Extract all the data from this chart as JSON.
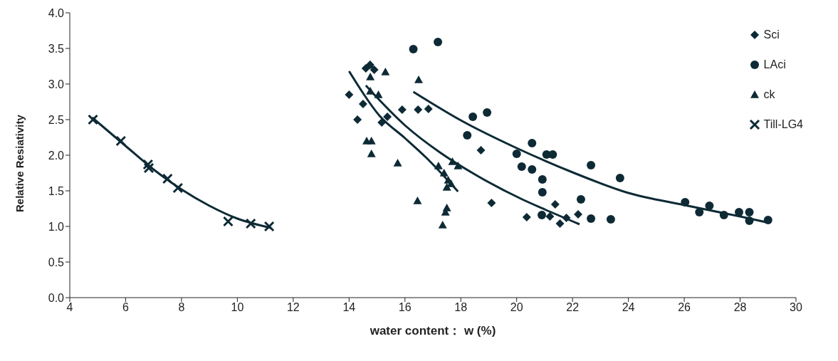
{
  "chart_data": {
    "type": "scatter",
    "xlabel": "water content： w (%)",
    "ylabel": "Relative Resiativity",
    "xlim": [
      4,
      30
    ],
    "xticks": [
      4,
      6,
      8,
      10,
      12,
      14,
      16,
      18,
      20,
      22,
      24,
      26,
      28,
      30
    ],
    "ylim": [
      0,
      4
    ],
    "yticks": [
      {
        "value": 0,
        "label": "0.0"
      },
      {
        "value": 0.5,
        "label": "0.5"
      },
      {
        "value": 1,
        "label": "1.0"
      },
      {
        "value": 1.5,
        "label": "1.5"
      },
      {
        "value": 2,
        "label": "2.0"
      },
      {
        "value": 2.5,
        "label": "2.5"
      },
      {
        "value": 3,
        "label": "3.0"
      },
      {
        "value": 3.5,
        "label": "3.5"
      },
      {
        "value": 4,
        "label": "4.0"
      }
    ],
    "grid": false,
    "legend": "top right",
    "series": [
      {
        "name": "Sci",
        "marker": "diamond",
        "color": "#0d2a35",
        "x": [
          14.0,
          14.3,
          14.5,
          14.6,
          14.75,
          14.9,
          15.17,
          15.37,
          15.9,
          16.47,
          16.84,
          18.72,
          19.1,
          20.36,
          21.38,
          22.2,
          21.19,
          21.55,
          21.78
        ],
        "values": [
          2.85,
          2.5,
          2.72,
          3.22,
          3.27,
          3.2,
          2.46,
          2.54,
          2.64,
          2.64,
          2.65,
          2.07,
          1.33,
          1.13,
          1.31,
          1.17,
          1.14,
          1.04,
          1.12
        ]
      },
      {
        "name": "LAci",
        "marker": "circle",
        "color": "#0d2a35",
        "x": [
          16.3,
          17.18,
          18.43,
          18.23,
          18.94,
          20.55,
          20.0,
          21.07,
          21.29,
          20.18,
          20.55,
          20.92,
          20.92,
          22.66,
          23.7,
          22.3,
          22.66,
          23.37,
          20.9,
          26.03,
          26.54,
          26.9,
          27.42,
          27.96,
          28.33,
          28.33,
          29.0
        ],
        "values": [
          3.49,
          3.59,
          2.54,
          2.28,
          2.6,
          2.17,
          2.02,
          2.01,
          2.01,
          1.84,
          1.8,
          1.66,
          1.48,
          1.86,
          1.68,
          1.38,
          1.11,
          1.1,
          1.16,
          1.34,
          1.2,
          1.29,
          1.16,
          1.2,
          1.2,
          1.08,
          1.09
        ]
      },
      {
        "name": "ck",
        "marker": "triangle",
        "color": "#0d2a35",
        "x": [
          15.3,
          16.49,
          14.76,
          14.76,
          14.76,
          15.05,
          14.63,
          14.8,
          14.8,
          15.74,
          17.2,
          17.4,
          17.55,
          17.7,
          17.9,
          17.5,
          17.65,
          16.45,
          17.5,
          17.45,
          17.35
        ],
        "values": [
          3.17,
          3.06,
          3.27,
          3.1,
          2.9,
          2.85,
          2.2,
          2.2,
          2.02,
          1.89,
          1.85,
          1.75,
          1.65,
          1.91,
          1.85,
          1.55,
          1.6,
          1.36,
          1.26,
          1.2,
          1.02
        ]
      },
      {
        "name": "Till-LG4",
        "marker": "cross",
        "color": "#0d2a35",
        "x": [
          4.83,
          5.83,
          6.8,
          6.83,
          7.5,
          7.87,
          9.67,
          10.48,
          11.14
        ],
        "values": [
          2.5,
          2.2,
          1.87,
          1.82,
          1.67,
          1.54,
          1.07,
          1.04,
          1.0
        ]
      },
      {
        "type": "line",
        "marker": "none",
        "color": "#0d2a35",
        "x": [
          14.6,
          15.05,
          16,
          17.25,
          18.55,
          20.2,
          21,
          22.25
        ],
        "values": [
          2.98,
          2.79,
          2.42,
          2.04,
          1.72,
          1.38,
          1.24,
          1.03
        ]
      },
      {
        "type": "line",
        "marker": "none",
        "color": "#0d2a35",
        "x": [
          16.3,
          18,
          20,
          22,
          24,
          26,
          28,
          29.05
        ],
        "values": [
          2.89,
          2.49,
          2.1,
          1.76,
          1.47,
          1.3,
          1.14,
          1.05
        ]
      },
      {
        "type": "line",
        "marker": "none",
        "color": "#0d2a35",
        "x": [
          14,
          15.1,
          16,
          16.75,
          17.9
        ],
        "values": [
          3.18,
          2.55,
          2.24,
          1.97,
          1.49
        ]
      },
      {
        "type": "line",
        "marker": "none",
        "color": "#0d2a35",
        "x": [
          4.8,
          6,
          7,
          8,
          9,
          10,
          11.2
        ],
        "values": [
          2.53,
          2.13,
          1.8,
          1.52,
          1.29,
          1.11,
          0.98
        ]
      }
    ]
  }
}
